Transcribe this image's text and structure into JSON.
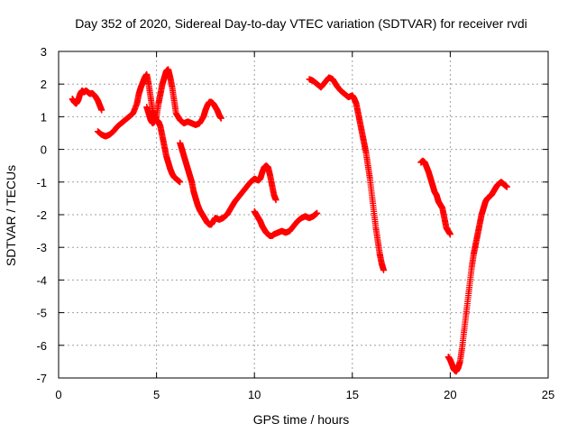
{
  "chart_data": {
    "type": "scatter",
    "title": "Day 352 of 2020, Sidereal Day-to-day VTEC variation (SDTVAR) for receiver rvdi",
    "xlabel": "GPS time / hours",
    "ylabel": "SDTVAR / TECUs",
    "xlim": [
      0,
      25
    ],
    "ylim": [
      -7,
      3
    ],
    "xticks": [
      0,
      5,
      10,
      15,
      20,
      25
    ],
    "yticks": [
      3,
      2,
      1,
      0,
      -1,
      -2,
      -3,
      -4,
      -5,
      -6,
      -7
    ],
    "grid": true,
    "marker": "+",
    "color": "#ff0000",
    "series": [
      {
        "x": [
          0.7,
          0.8,
          0.9,
          1.0,
          1.1,
          1.2,
          1.3,
          1.4,
          1.5,
          1.6,
          1.7,
          1.8,
          1.9,
          2.0,
          2.1,
          2.2
        ],
        "y": [
          1.55,
          1.45,
          1.4,
          1.5,
          1.7,
          1.8,
          1.75,
          1.8,
          1.75,
          1.7,
          1.72,
          1.68,
          1.6,
          1.5,
          1.35,
          1.2
        ]
      },
      {
        "x": [
          2.0,
          2.2,
          2.4,
          2.6,
          2.8,
          3.0,
          3.2,
          3.4,
          3.6,
          3.8,
          4.0,
          4.1,
          4.2,
          4.3,
          4.4,
          4.5,
          4.6,
          4.7,
          4.8,
          4.9,
          5.0,
          5.1,
          5.2,
          5.3,
          5.4,
          5.5,
          5.6,
          5.7,
          5.8,
          5.9,
          6.0,
          6.1,
          6.2
        ],
        "y": [
          0.55,
          0.45,
          0.4,
          0.45,
          0.55,
          0.7,
          0.8,
          0.9,
          1.0,
          1.1,
          1.4,
          1.7,
          1.9,
          2.05,
          2.2,
          2.3,
          2.0,
          1.6,
          1.2,
          1.0,
          0.9,
          0.85,
          0.7,
          0.4,
          0.1,
          -0.2,
          -0.4,
          -0.6,
          -0.75,
          -0.85,
          -0.9,
          -0.95,
          -1.0
        ]
      },
      {
        "x": [
          4.5,
          4.6,
          4.7,
          4.8,
          4.9,
          5.0,
          5.1,
          5.2,
          5.3,
          5.4,
          5.5,
          5.6,
          5.7,
          5.8,
          5.9,
          6.0,
          6.2,
          6.4,
          6.6,
          6.8,
          7.0,
          7.2,
          7.4,
          7.5,
          7.6,
          7.7,
          7.8,
          7.9,
          8.0,
          8.1,
          8.2,
          8.3
        ],
        "y": [
          1.3,
          1.1,
          0.9,
          0.8,
          0.85,
          1.0,
          1.4,
          1.7,
          2.0,
          2.2,
          2.4,
          2.45,
          2.2,
          1.9,
          1.5,
          1.1,
          0.9,
          0.8,
          0.85,
          0.8,
          0.75,
          0.8,
          1.0,
          1.2,
          1.35,
          1.45,
          1.45,
          1.4,
          1.3,
          1.2,
          1.05,
          0.95
        ]
      },
      {
        "x": [
          6.2,
          6.3,
          6.4,
          6.5,
          6.6,
          6.7,
          6.8,
          6.9,
          7.0,
          7.1,
          7.2,
          7.3,
          7.4,
          7.5,
          7.6,
          7.7,
          7.8,
          7.9,
          8.0,
          8.2,
          8.4,
          8.6,
          8.8,
          9.0,
          9.2,
          9.4,
          9.6,
          9.8,
          10.0,
          10.2,
          10.3,
          10.4,
          10.5,
          10.6,
          10.7,
          10.8,
          10.9,
          11.0,
          11.1
        ],
        "y": [
          0.2,
          0.0,
          -0.2,
          -0.4,
          -0.6,
          -0.8,
          -1.0,
          -1.3,
          -1.5,
          -1.7,
          -1.85,
          -1.95,
          -2.05,
          -2.15,
          -2.25,
          -2.3,
          -2.3,
          -2.2,
          -2.1,
          -2.15,
          -2.1,
          -2.0,
          -1.8,
          -1.6,
          -1.45,
          -1.3,
          -1.15,
          -1.0,
          -0.9,
          -0.95,
          -0.9,
          -0.7,
          -0.55,
          -0.5,
          -0.55,
          -0.8,
          -1.1,
          -1.4,
          -1.55
        ]
      },
      {
        "x": [
          10.0,
          10.1,
          10.2,
          10.3,
          10.4,
          10.5,
          10.6,
          10.7,
          10.8,
          10.9,
          11.0,
          11.2,
          11.4,
          11.6,
          11.8,
          12.0,
          12.2,
          12.4,
          12.6,
          12.8,
          13.0,
          13.1,
          13.2
        ],
        "y": [
          -1.9,
          -2.0,
          -2.1,
          -2.2,
          -2.35,
          -2.45,
          -2.55,
          -2.6,
          -2.65,
          -2.65,
          -2.6,
          -2.55,
          -2.5,
          -2.55,
          -2.5,
          -2.35,
          -2.2,
          -2.1,
          -2.05,
          -2.1,
          -2.05,
          -2.0,
          -1.95
        ]
      },
      {
        "x": [
          12.8,
          13.0,
          13.2,
          13.4,
          13.6,
          13.8,
          14.0,
          14.2,
          14.4,
          14.6,
          14.8,
          15.0,
          15.1,
          15.2,
          15.3,
          15.4,
          15.5,
          15.6,
          15.7,
          15.8,
          15.9,
          16.0,
          16.1,
          16.2,
          16.3,
          16.4,
          16.5,
          16.6
        ],
        "y": [
          2.15,
          2.1,
          2.0,
          1.9,
          2.05,
          2.2,
          2.15,
          1.95,
          1.8,
          1.7,
          1.6,
          1.65,
          1.55,
          1.4,
          1.1,
          0.8,
          0.5,
          0.2,
          -0.1,
          -0.5,
          -0.9,
          -1.4,
          -1.9,
          -2.4,
          -2.8,
          -3.2,
          -3.5,
          -3.7
        ]
      },
      {
        "x": [
          18.5,
          18.6,
          18.7,
          18.8,
          18.9,
          19.0,
          19.1,
          19.2,
          19.3,
          19.4,
          19.5,
          19.6,
          19.7,
          19.8,
          19.9,
          20.0
        ],
        "y": [
          -0.4,
          -0.35,
          -0.4,
          -0.55,
          -0.7,
          -0.9,
          -1.1,
          -1.3,
          -1.4,
          -1.6,
          -1.7,
          -1.8,
          -2.1,
          -2.4,
          -2.5,
          -2.6
        ]
      },
      {
        "x": [
          19.9,
          20.0,
          20.1,
          20.2,
          20.3,
          20.4,
          20.5,
          20.6,
          20.7,
          20.8,
          20.9,
          21.0,
          21.1,
          21.2,
          21.3,
          21.4,
          21.5,
          21.6,
          21.7,
          21.8,
          21.9,
          22.0,
          22.1,
          22.2,
          22.3,
          22.4,
          22.5,
          22.6,
          22.7,
          22.8,
          22.9
        ],
        "y": [
          -6.35,
          -6.45,
          -6.6,
          -6.75,
          -6.8,
          -6.7,
          -6.5,
          -6.1,
          -5.6,
          -5.1,
          -4.6,
          -4.1,
          -3.6,
          -3.2,
          -2.9,
          -2.6,
          -2.3,
          -2.0,
          -1.8,
          -1.6,
          -1.5,
          -1.45,
          -1.4,
          -1.3,
          -1.2,
          -1.1,
          -1.05,
          -1.0,
          -1.05,
          -1.1,
          -1.15
        ]
      }
    ]
  }
}
